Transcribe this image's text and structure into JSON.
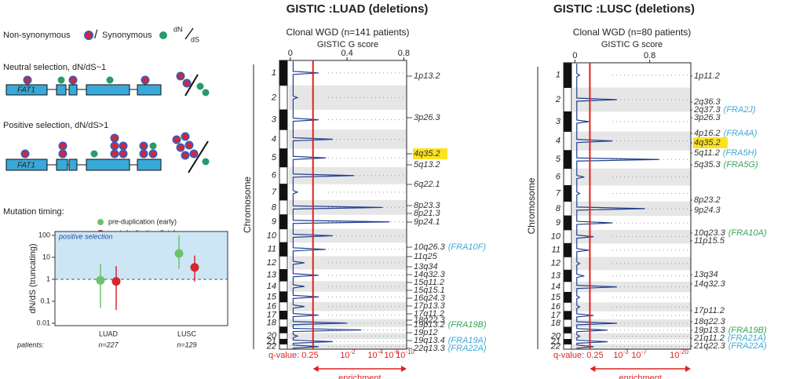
{
  "schematic": {
    "nonsyn": "Non-synonymous",
    "slash": "/",
    "syn": "Synonymous",
    "ratio_top": "dN",
    "ratio_bottom": "dS",
    "neutral": "Neutral selection,  dN/dS~1",
    "positive": "Positive selection, dN/dS>1",
    "gene_neutral": "FAT1",
    "gene_positive": "FAT1",
    "timing_label": "Mutation timing:"
  },
  "timing_chart": {
    "type": "scatter",
    "log_y": true,
    "ylabel": "dN/dS (truncating)",
    "shade_label": "positive selection",
    "reference": 1,
    "categories": [
      "LUAD",
      "LUSC"
    ],
    "patients_label": "patients:",
    "patients": [
      "n=227",
      "n=129"
    ],
    "ylim": [
      0.0078,
      150
    ],
    "yticks": [
      100,
      10,
      1,
      0.1,
      0.01
    ],
    "series": [
      {
        "name": "pre-duplication (early)",
        "color": "#6cc36c",
        "values": [
          0.9,
          15
        ],
        "lower": [
          0.05,
          3
        ],
        "upper": [
          5,
          100
        ]
      },
      {
        "name": "post-duplication (late)",
        "color": "#d8262f",
        "values": [
          0.8,
          3.5
        ],
        "lower": [
          0.04,
          0.8
        ],
        "upper": [
          4,
          12
        ]
      }
    ]
  },
  "gistic": [
    {
      "type": "line",
      "title": "GISTIC :LUAD (deletions)",
      "subtitle": "Clonal WGD (n=141 patients)",
      "xlabel": "GISTIC G score",
      "ylabel": "Chromosome",
      "xlim": [
        -0.01,
        0.82
      ],
      "xticks": [
        0,
        0.4,
        0.8
      ],
      "threshold": 0.16,
      "color": "#1f3f8f",
      "chromosomes": [
        "1",
        "2",
        "3",
        "4",
        "5",
        "6",
        "7",
        "8",
        "9",
        "10",
        "11",
        "12",
        "13",
        "14",
        "15",
        "16",
        "17",
        "18",
        null,
        "20",
        "21",
        "22"
      ],
      "values": [
        0.2,
        0.05,
        0.2,
        0.3,
        0.25,
        0.45,
        0.05,
        0.65,
        0.7,
        0.3,
        0.25,
        0.1,
        0.2,
        0.1,
        0.2,
        0.1,
        0.2,
        0.4,
        0.5,
        0.05,
        0.3,
        0.2
      ],
      "q_label": "q-value: 0.25",
      "q_ticks": [
        {
          "base": "10",
          "exp": "-2"
        },
        {
          "base": "10",
          "exp": "-4"
        },
        {
          "base": "10",
          "exp": "-6"
        },
        {
          "base": "10",
          "exp": "-10"
        }
      ],
      "enrichment": "enrichment",
      "bands": [
        {
          "label": "1p13.2"
        },
        {
          "label": "3p26.3"
        },
        {
          "label": "4q35.2",
          "highlight": true
        },
        {
          "label": "5q13.2"
        },
        {
          "label": "6q22.1"
        },
        {
          "label": "8p23.3"
        },
        {
          "label": "8p21.3"
        },
        {
          "label": "9p24.1"
        },
        {
          "label": "10q26.3",
          "fragile": "(FRA10F)",
          "color": "#3fa9d6"
        },
        {
          "label": "11q25"
        },
        {
          "label": "13q34"
        },
        {
          "label": "14q32.3"
        },
        {
          "label": "15q11.2"
        },
        {
          "label": "15q15.1"
        },
        {
          "label": "16q24.3"
        },
        {
          "label": "17p13.3"
        },
        {
          "label": "17q11.2"
        },
        {
          "label": "18q22.3"
        },
        {
          "label": "19p13.2",
          "fragile": "(FRA19B)",
          "color": "#3aa35a"
        },
        {
          "label": "19p12"
        },
        {
          "label": "19q13.4",
          "fragile": "(FRA19A)",
          "color": "#3fa9d6"
        },
        {
          "label": "22q13.3",
          "fragile": "(FRA22A)",
          "color": "#3fa9d6"
        }
      ]
    },
    {
      "type": "line",
      "title": "GISTIC :LUSC (deletions)",
      "subtitle": "Clonal WGD (n=80 patients)",
      "xlabel": "GISTIC G score",
      "ylabel": "Chromosome",
      "xlim": [
        -0.02,
        1.24
      ],
      "xticks": [
        0,
        0.8
      ],
      "threshold": 0.16,
      "color": "#1f3f8f",
      "chromosomes": [
        "1",
        "2",
        "3",
        "4",
        "5",
        "6",
        "7",
        "8",
        "9",
        "10",
        "11",
        "12",
        "13",
        "14",
        "15",
        "16",
        "17",
        "18",
        null,
        "20",
        "21",
        "22"
      ],
      "values": [
        0.05,
        0.45,
        0.15,
        0.4,
        0.9,
        0.1,
        0.05,
        0.75,
        0.4,
        0.2,
        0.15,
        0.05,
        0.1,
        0.45,
        0.05,
        0.05,
        0.2,
        0.45,
        0.35,
        0.05,
        0.35,
        0.2
      ],
      "q_label": "q-value: 0.25",
      "q_ticks": [
        {
          "base": "10",
          "exp": "-3"
        },
        {
          "base": "10",
          "exp": "-7"
        },
        {
          "base": "10",
          "exp": "-20"
        }
      ],
      "enrichment": "enrichment",
      "bands": [
        {
          "label": "1p11.2"
        },
        {
          "label": "2q36.3"
        },
        {
          "label": "2q37.3",
          "fragile": "(FRA2J)",
          "color": "#3fa9d6"
        },
        {
          "label": "3p26.3"
        },
        {
          "label": "4p16.2",
          "fragile": "(FRA4A)",
          "color": "#3fa9d6"
        },
        {
          "label": "4q35.2",
          "highlight": true
        },
        {
          "label": "5q11.2",
          "fragile": "(FRA5H)",
          "color": "#3fa9d6"
        },
        {
          "label": "5q35.3",
          "fragile": "(FRA5G)",
          "color": "#3aa35a"
        },
        {
          "label": "8p23.2"
        },
        {
          "label": "9p24.3"
        },
        {
          "label": "10q23.3",
          "fragile": "(FRA10A)",
          "color": "#3aa35a"
        },
        {
          "label": "11p15.5"
        },
        {
          "label": "13q34"
        },
        {
          "label": "14q32.3"
        },
        {
          "label": "17p11.2"
        },
        {
          "label": "18q22.3"
        },
        {
          "label": "19p13.3",
          "fragile": "(FRA19B)",
          "color": "#3aa35a"
        },
        {
          "label": "21q11.2",
          "fragile": "(FRA21A)",
          "color": "#3fa9d6"
        },
        {
          "label": "21q22.3",
          "fragile": "(FRA22A)",
          "color": "#3fa9d6"
        }
      ]
    }
  ]
}
